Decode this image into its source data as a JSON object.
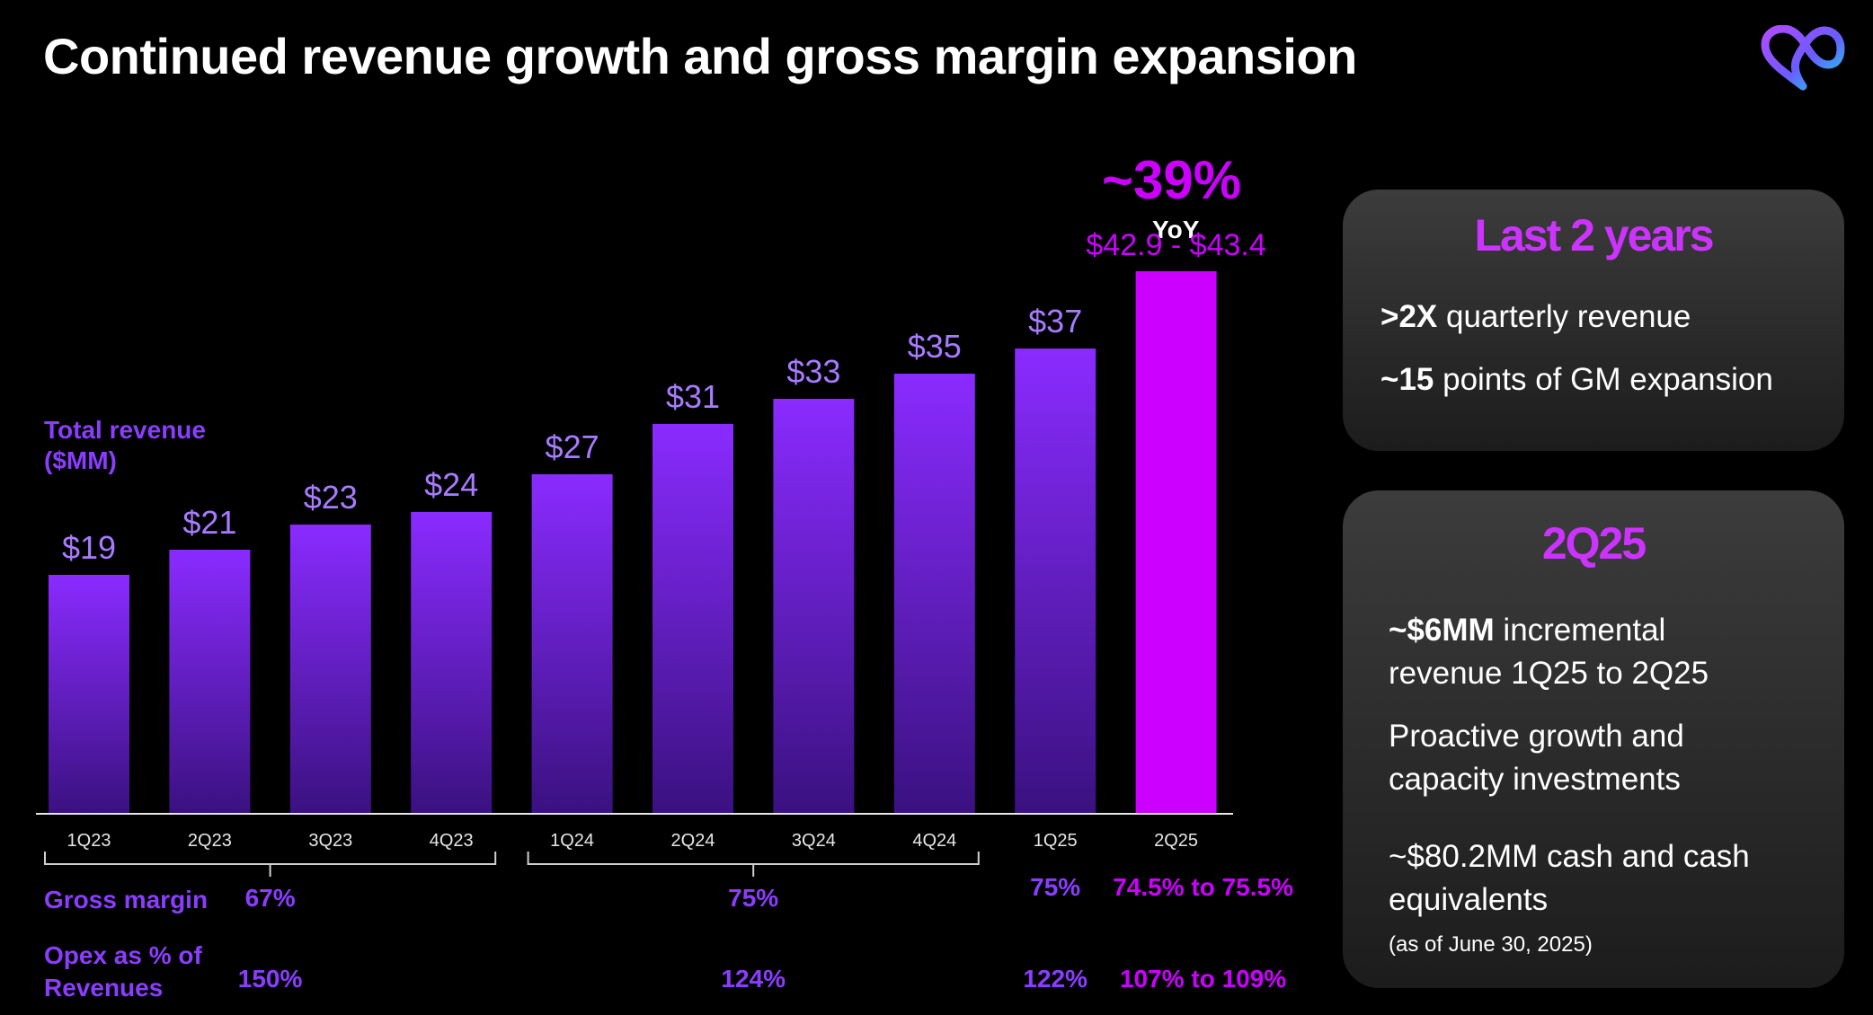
{
  "title": "Continued revenue growth and gross margin expansion",
  "logo_icon": "infinity-heart-logo-icon",
  "colors": {
    "bar_top": "#8a2bff",
    "bar_bottom": "#3a1180",
    "highlight": "#cc00ff",
    "label": "#8b3dff",
    "card_title": "#cc33ff"
  },
  "chart_data": {
    "type": "bar",
    "ylabel": "Total revenue\n($MM)",
    "categories": [
      "1Q23",
      "2Q23",
      "3Q23",
      "4Q23",
      "1Q24",
      "2Q24",
      "3Q24",
      "4Q24",
      "1Q25",
      "2Q25"
    ],
    "values": [
      19,
      21,
      23,
      24,
      27,
      31,
      33,
      35,
      37,
      43.15
    ],
    "value_labels": [
      "$19",
      "$21",
      "$23",
      "$24",
      "$27",
      "$31",
      "$33",
      "$35",
      "$37",
      "$42.9 - $43.4"
    ],
    "highlight_index": 9,
    "ylim": [
      0,
      50
    ],
    "grid": false,
    "annotation": {
      "value": "~39%",
      "label": "YoY"
    },
    "metrics": [
      {
        "label": "Gross margin",
        "values": [
          {
            "text": "67%",
            "span": [
              0,
              3
            ],
            "highlight": false
          },
          {
            "text": "75%",
            "span": [
              4,
              7
            ],
            "highlight": false
          },
          {
            "text": "75%",
            "span": [
              8,
              8
            ],
            "highlight": false
          },
          {
            "text": "74.5% to 75.5%",
            "span": [
              9,
              9
            ],
            "highlight": true
          }
        ]
      },
      {
        "label": "Opex as % of\nRevenues",
        "values": [
          {
            "text": "150%",
            "span": [
              0,
              3
            ],
            "highlight": false
          },
          {
            "text": "124%",
            "span": [
              4,
              7
            ],
            "highlight": false
          },
          {
            "text": "122%",
            "span": [
              8,
              8
            ],
            "highlight": false
          },
          {
            "text": "107% to 109%",
            "span": [
              9,
              9
            ],
            "highlight": true
          }
        ]
      }
    ]
  },
  "card_last2": {
    "title": "Last 2 years",
    "lines": [
      {
        "bold": ">2X",
        "text": " quarterly revenue"
      },
      {
        "bold": "~15",
        "text": " points of GM expansion"
      }
    ]
  },
  "card_2q25": {
    "title": "2Q25",
    "line1_bold": "~$6MM",
    "line1_rest": " incremental",
    "line1_cont": "revenue 1Q25 to 2Q25",
    "line2a": "Proactive growth and",
    "line2b": "capacity investments",
    "line3a": "~$80.2MM cash and cash",
    "line3b": "equivalents",
    "note": "(as of June 30, 2025)"
  }
}
